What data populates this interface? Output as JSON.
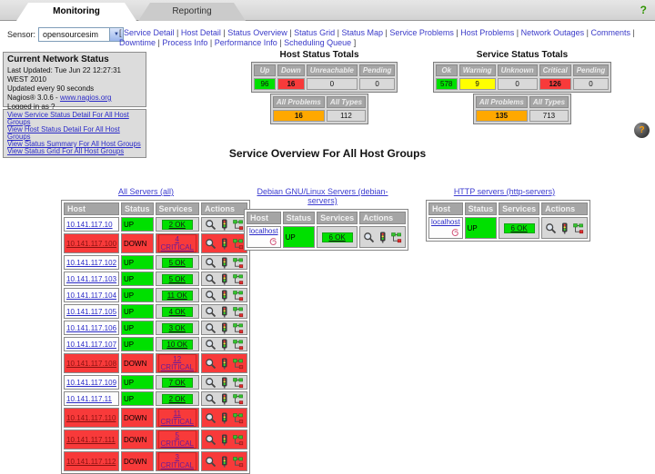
{
  "header": {
    "tabs": {
      "monitoring": "Monitoring",
      "reporting": "Reporting"
    },
    "help_mark": "?"
  },
  "sensor": {
    "label": "Sensor:",
    "value": "opensourcesim"
  },
  "nav": {
    "prefix": "[",
    "suffix": "]",
    "links": [
      "Service Detail",
      "Host Detail",
      "Status Overview",
      "Status Grid",
      "Status Map",
      "Service Problems",
      "Host Problems",
      "Network Outages",
      "Comments",
      "Downtime",
      "Process Info",
      "Performance Info",
      "Scheduling Queue"
    ]
  },
  "network_status": {
    "title": "Current Network Status",
    "last_updated": "Last Updated: Tue Jun 22 12:27:31 WEST 2010",
    "update_interval": "Updated every 90 seconds",
    "version_prefix": "Nagios® 3.0.6 -",
    "version_link": "www.nagios.org",
    "logged_in": "Logged in as ?"
  },
  "quick_links": [
    "View Service Status Detail For All Host Groups",
    "View Host Status Detail For All Host Groups",
    "View Status Summary For All Host Groups",
    "View Status Grid For All Host Groups"
  ],
  "host_totals": {
    "title": "Host Status Totals",
    "headers": [
      "Up",
      "Down",
      "Unreachable",
      "Pending"
    ],
    "values": [
      "96",
      "16",
      "0",
      "0"
    ],
    "summary_headers": [
      "All Problems",
      "All Types"
    ],
    "summary_values": [
      "16",
      "112"
    ]
  },
  "service_totals": {
    "title": "Service Status Totals",
    "headers": [
      "Ok",
      "Warning",
      "Unknown",
      "Critical",
      "Pending"
    ],
    "values": [
      "578",
      "9",
      "0",
      "126",
      "0"
    ],
    "summary_headers": [
      "All Problems",
      "All Types"
    ],
    "summary_values": [
      "135",
      "713"
    ]
  },
  "help_ball": "?",
  "page_title": "Service Overview For All Host Groups",
  "table_columns": [
    "Host",
    "Status",
    "Services",
    "Actions"
  ],
  "action_icon_names": [
    "service-detail-icon",
    "status-detail-icon",
    "status-map-icon"
  ],
  "groups": [
    {
      "title": "All Servers (all)",
      "rows": [
        {
          "host": "10.141.117.10",
          "status": "UP",
          "services": "2 OK",
          "state": "up"
        },
        {
          "host": "10.141.117.100",
          "status": "DOWN",
          "services": "4 CRITICAL",
          "state": "down"
        },
        {
          "host": "10.141.117.102",
          "status": "UP",
          "services": "5 OK",
          "state": "up"
        },
        {
          "host": "10.141.117.103",
          "status": "UP",
          "services": "5 OK",
          "state": "up"
        },
        {
          "host": "10.141.117.104",
          "status": "UP",
          "services": "11 OK",
          "state": "up"
        },
        {
          "host": "10.141.117.105",
          "status": "UP",
          "services": "4 OK",
          "state": "up"
        },
        {
          "host": "10.141.117.106",
          "status": "UP",
          "services": "3 OK",
          "state": "up"
        },
        {
          "host": "10.141.117.107",
          "status": "UP",
          "services": "10 OK",
          "state": "up"
        },
        {
          "host": "10.141.117.108",
          "status": "DOWN",
          "services": "12 CRITICAL",
          "state": "down"
        },
        {
          "host": "10.141.117.109",
          "status": "UP",
          "services": "7 OK",
          "state": "up"
        },
        {
          "host": "10.141.117.11",
          "status": "UP",
          "services": "2 OK",
          "state": "up"
        },
        {
          "host": "10.141.117.110",
          "status": "DOWN",
          "services": "11 CRITICAL",
          "state": "down"
        },
        {
          "host": "10.141.117.111",
          "status": "DOWN",
          "services": "5 CRITICAL",
          "state": "down"
        },
        {
          "host": "10.141.117.112",
          "status": "DOWN",
          "services": "3 CRITICAL",
          "state": "down"
        }
      ]
    },
    {
      "title": "Debian GNU/Linux Servers (debian-servers)",
      "rows": [
        {
          "host": "localhost",
          "status": "UP",
          "services": "6 OK",
          "state": "up",
          "host_icon": "debian-logo"
        }
      ]
    },
    {
      "title": "HTTP servers (http-servers)",
      "rows": [
        {
          "host": "localhost",
          "status": "UP",
          "services": "6 OK",
          "state": "up",
          "host_icon": "debian-logo"
        }
      ]
    }
  ],
  "colors": {
    "ok_green": "#00e000",
    "critical_red": "#f83a3a",
    "warning_yellow": "#ffff00",
    "problem_orange": "#ffa800",
    "link_blue": "#3a3ac8"
  }
}
